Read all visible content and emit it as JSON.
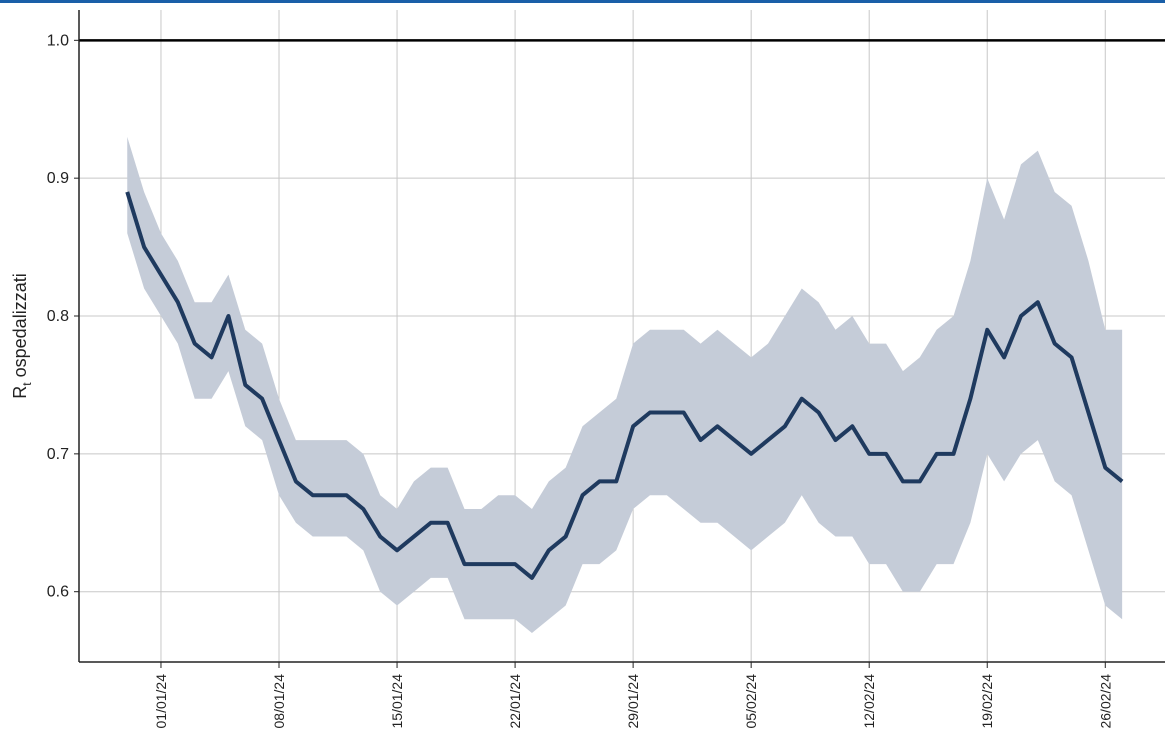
{
  "chart_data": {
    "type": "line",
    "ylabel": {
      "base": "R",
      "subscript": "t",
      "text": " ospedalizzati"
    },
    "x": [
      "2023-12-30",
      "2023-12-31",
      "2024-01-01",
      "2024-01-02",
      "2024-01-03",
      "2024-01-04",
      "2024-01-05",
      "2024-01-06",
      "2024-01-07",
      "2024-01-08",
      "2024-01-09",
      "2024-01-10",
      "2024-01-11",
      "2024-01-12",
      "2024-01-13",
      "2024-01-14",
      "2024-01-15",
      "2024-01-16",
      "2024-01-17",
      "2024-01-18",
      "2024-01-19",
      "2024-01-20",
      "2024-01-21",
      "2024-01-22",
      "2024-01-23",
      "2024-01-24",
      "2024-01-25",
      "2024-01-26",
      "2024-01-27",
      "2024-01-28",
      "2024-01-29",
      "2024-01-30",
      "2024-01-31",
      "2024-02-01",
      "2024-02-02",
      "2024-02-03",
      "2024-02-04",
      "2024-02-05",
      "2024-02-06",
      "2024-02-07",
      "2024-02-08",
      "2024-02-09",
      "2024-02-10",
      "2024-02-11",
      "2024-02-12",
      "2024-02-13",
      "2024-02-14",
      "2024-02-15",
      "2024-02-16",
      "2024-02-17",
      "2024-02-18",
      "2024-02-19",
      "2024-02-20",
      "2024-02-21",
      "2024-02-22",
      "2024-02-23",
      "2024-02-24",
      "2024-02-25",
      "2024-02-26",
      "2024-02-27"
    ],
    "values": [
      0.89,
      0.85,
      0.83,
      0.81,
      0.78,
      0.77,
      0.8,
      0.75,
      0.74,
      0.71,
      0.68,
      0.67,
      0.67,
      0.67,
      0.66,
      0.64,
      0.63,
      0.64,
      0.65,
      0.65,
      0.62,
      0.62,
      0.62,
      0.62,
      0.61,
      0.63,
      0.64,
      0.67,
      0.68,
      0.68,
      0.72,
      0.73,
      0.73,
      0.73,
      0.71,
      0.72,
      0.71,
      0.7,
      0.71,
      0.72,
      0.74,
      0.73,
      0.71,
      0.72,
      0.7,
      0.7,
      0.68,
      0.68,
      0.7,
      0.7,
      0.74,
      0.79,
      0.77,
      0.8,
      0.81,
      0.78,
      0.77,
      0.73,
      0.69,
      0.68
    ],
    "band": {
      "upper": [
        0.93,
        0.89,
        0.86,
        0.84,
        0.81,
        0.81,
        0.83,
        0.79,
        0.78,
        0.74,
        0.71,
        0.71,
        0.71,
        0.71,
        0.7,
        0.67,
        0.66,
        0.68,
        0.69,
        0.69,
        0.66,
        0.66,
        0.67,
        0.67,
        0.66,
        0.68,
        0.69,
        0.72,
        0.73,
        0.74,
        0.78,
        0.79,
        0.79,
        0.79,
        0.78,
        0.79,
        0.78,
        0.77,
        0.78,
        0.8,
        0.82,
        0.81,
        0.79,
        0.8,
        0.78,
        0.78,
        0.76,
        0.77,
        0.79,
        0.8,
        0.84,
        0.9,
        0.87,
        0.91,
        0.92,
        0.89,
        0.88,
        0.84,
        0.79,
        0.79
      ],
      "lower": [
        0.86,
        0.82,
        0.8,
        0.78,
        0.74,
        0.74,
        0.76,
        0.72,
        0.71,
        0.67,
        0.65,
        0.64,
        0.64,
        0.64,
        0.63,
        0.6,
        0.59,
        0.6,
        0.61,
        0.61,
        0.58,
        0.58,
        0.58,
        0.58,
        0.57,
        0.58,
        0.59,
        0.62,
        0.62,
        0.63,
        0.66,
        0.67,
        0.67,
        0.66,
        0.65,
        0.65,
        0.64,
        0.63,
        0.64,
        0.65,
        0.67,
        0.65,
        0.64,
        0.64,
        0.62,
        0.62,
        0.6,
        0.6,
        0.62,
        0.62,
        0.65,
        0.7,
        0.68,
        0.7,
        0.71,
        0.68,
        0.67,
        0.63,
        0.59,
        0.58
      ],
      "color": "#c5ccd8"
    },
    "color": "#1f3a5f",
    "hline": 1.0,
    "xlim": [
      "2023-12-27T03:20Z",
      "2024-02-29T13:00Z"
    ],
    "xticks": [
      {
        "value": "2024-01-01",
        "label": "01/01/24"
      },
      {
        "value": "2024-01-08",
        "label": "08/01/24"
      },
      {
        "value": "2024-01-15",
        "label": "15/01/24"
      },
      {
        "value": "2024-01-22",
        "label": "22/01/24"
      },
      {
        "value": "2024-01-29",
        "label": "29/01/24"
      },
      {
        "value": "2024-02-05",
        "label": "05/02/24"
      },
      {
        "value": "2024-02-12",
        "label": "12/02/24"
      },
      {
        "value": "2024-02-19",
        "label": "19/02/24"
      },
      {
        "value": "2024-02-26",
        "label": "26/02/24"
      }
    ],
    "ylim": [
      0.549,
      1.022
    ],
    "yticks": [
      0.6,
      0.7,
      0.8,
      0.9,
      {
        "value": 1,
        "label": "1.0"
      }
    ],
    "grid": true
  }
}
